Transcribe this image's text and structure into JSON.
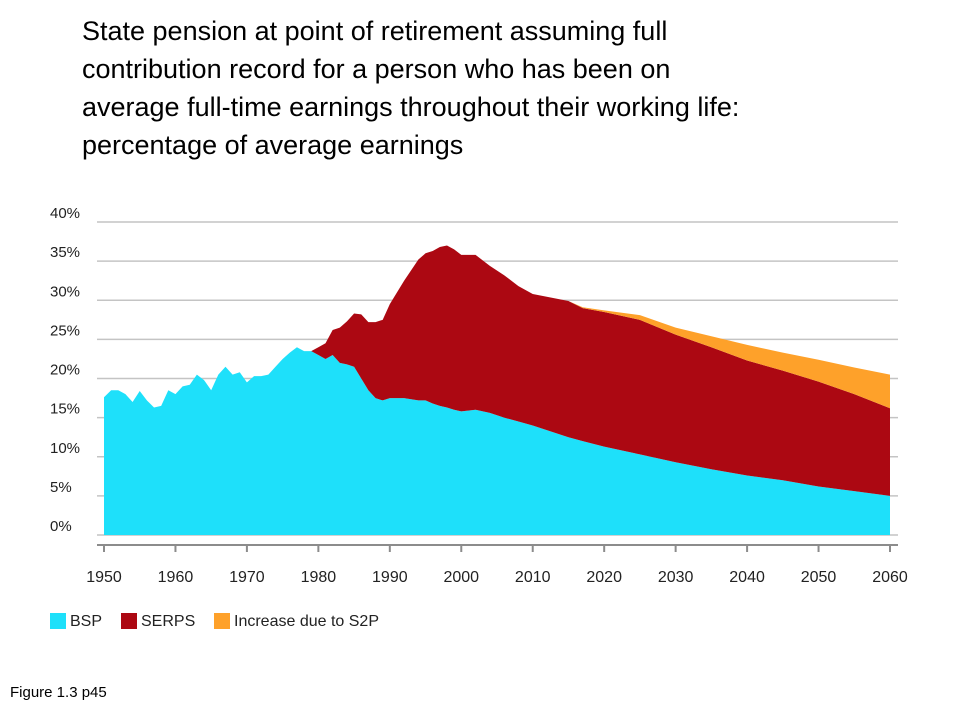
{
  "title_lines": [
    "State pension at point of retirement assuming full",
    "contribution record for a person who has been on",
    "average  full-time earnings throughout their working life:",
    "percentage of average earnings"
  ],
  "caption": "Figure 1.3 p45",
  "colors": {
    "BSP": "#1ee0fa",
    "SERPS": "#ac0812",
    "S2P": "#fea12a",
    "grid": "#c4c4c4",
    "axis": "#8c8c8c"
  },
  "chart_data": {
    "type": "area",
    "stacked": true,
    "title": "State pension at point of retirement assuming full contribution record for a person who has been on average full-time earnings throughout their working life: percentage of average earnings",
    "xlabel": "",
    "ylabel": "",
    "xlim": [
      1950,
      2060
    ],
    "ylim": [
      0,
      40
    ],
    "x_ticks": [
      "1950",
      "1960",
      "1970",
      "1980",
      "1990",
      "2000",
      "2010",
      "2020",
      "2030",
      "2040",
      "2050",
      "2060"
    ],
    "y_ticks": [
      "0%",
      "5%",
      "10%",
      "15%",
      "20%",
      "25%",
      "30%",
      "35%",
      "40%"
    ],
    "grid": true,
    "legend_position": "bottom-left",
    "legend": [
      "BSP",
      "SERPS",
      "Increase due to S2P"
    ],
    "x": [
      1950,
      1951,
      1952,
      1953,
      1954,
      1955,
      1956,
      1957,
      1958,
      1959,
      1960,
      1961,
      1962,
      1963,
      1964,
      1965,
      1966,
      1967,
      1968,
      1969,
      1970,
      1971,
      1972,
      1973,
      1974,
      1975,
      1976,
      1977,
      1978,
      1979,
      1980,
      1981,
      1982,
      1983,
      1984,
      1985,
      1986,
      1987,
      1988,
      1989,
      1990,
      1992,
      1994,
      1995,
      1996,
      1997,
      1998,
      1999,
      2000,
      2002,
      2004,
      2006,
      2008,
      2010,
      2015,
      2017,
      2020,
      2025,
      2030,
      2035,
      2040,
      2045,
      2050,
      2055,
      2060
    ],
    "series": [
      {
        "name": "BSP",
        "values": [
          17.6,
          18.5,
          18.5,
          18.0,
          17.0,
          18.4,
          17.2,
          16.3,
          16.5,
          18.5,
          18.0,
          19.0,
          19.2,
          20.5,
          19.8,
          18.5,
          20.5,
          21.5,
          20.5,
          20.8,
          19.5,
          20.3,
          20.3,
          20.5,
          21.5,
          22.5,
          23.3,
          24.0,
          23.5,
          23.5,
          23.0,
          22.5,
          23.0,
          22.0,
          21.8,
          21.5,
          20.0,
          18.5,
          17.5,
          17.2,
          17.5,
          17.5,
          17.2,
          17.2,
          16.8,
          16.5,
          16.3,
          16.0,
          15.8,
          16.0,
          15.6,
          15.0,
          14.5,
          14.0,
          12.5,
          12.0,
          11.3,
          10.3,
          9.3,
          8.4,
          7.6,
          7.0,
          6.2,
          5.6,
          5.0
        ]
      },
      {
        "name": "SERPS",
        "values": [
          0,
          0,
          0,
          0,
          0,
          0,
          0,
          0,
          0,
          0,
          0,
          0,
          0,
          0,
          0,
          0,
          0,
          0,
          0,
          0,
          0,
          0,
          0,
          0,
          0,
          0,
          0,
          0,
          0,
          0,
          1.0,
          2.0,
          3.2,
          4.5,
          5.5,
          6.8,
          8.2,
          8.7,
          9.7,
          10.3,
          12.0,
          15.0,
          18.0,
          18.8,
          19.5,
          20.3,
          20.7,
          20.5,
          20.0,
          19.8,
          18.8,
          18.2,
          17.3,
          16.8,
          17.4,
          17.0,
          17.2,
          17.2,
          16.3,
          15.6,
          14.7,
          14.0,
          13.4,
          12.4,
          11.2
        ]
      },
      {
        "name": "Increase due to S2P",
        "values": [
          0,
          0,
          0,
          0,
          0,
          0,
          0,
          0,
          0,
          0,
          0,
          0,
          0,
          0,
          0,
          0,
          0,
          0,
          0,
          0,
          0,
          0,
          0,
          0,
          0,
          0,
          0,
          0,
          0,
          0,
          0,
          0,
          0,
          0,
          0,
          0,
          0,
          0,
          0,
          0,
          0,
          0,
          0,
          0,
          0,
          0,
          0,
          0,
          0,
          0,
          0,
          0,
          0,
          0,
          0,
          0.1,
          0.2,
          0.6,
          0.9,
          1.4,
          2.0,
          2.3,
          2.8,
          3.4,
          4.3
        ]
      }
    ]
  }
}
